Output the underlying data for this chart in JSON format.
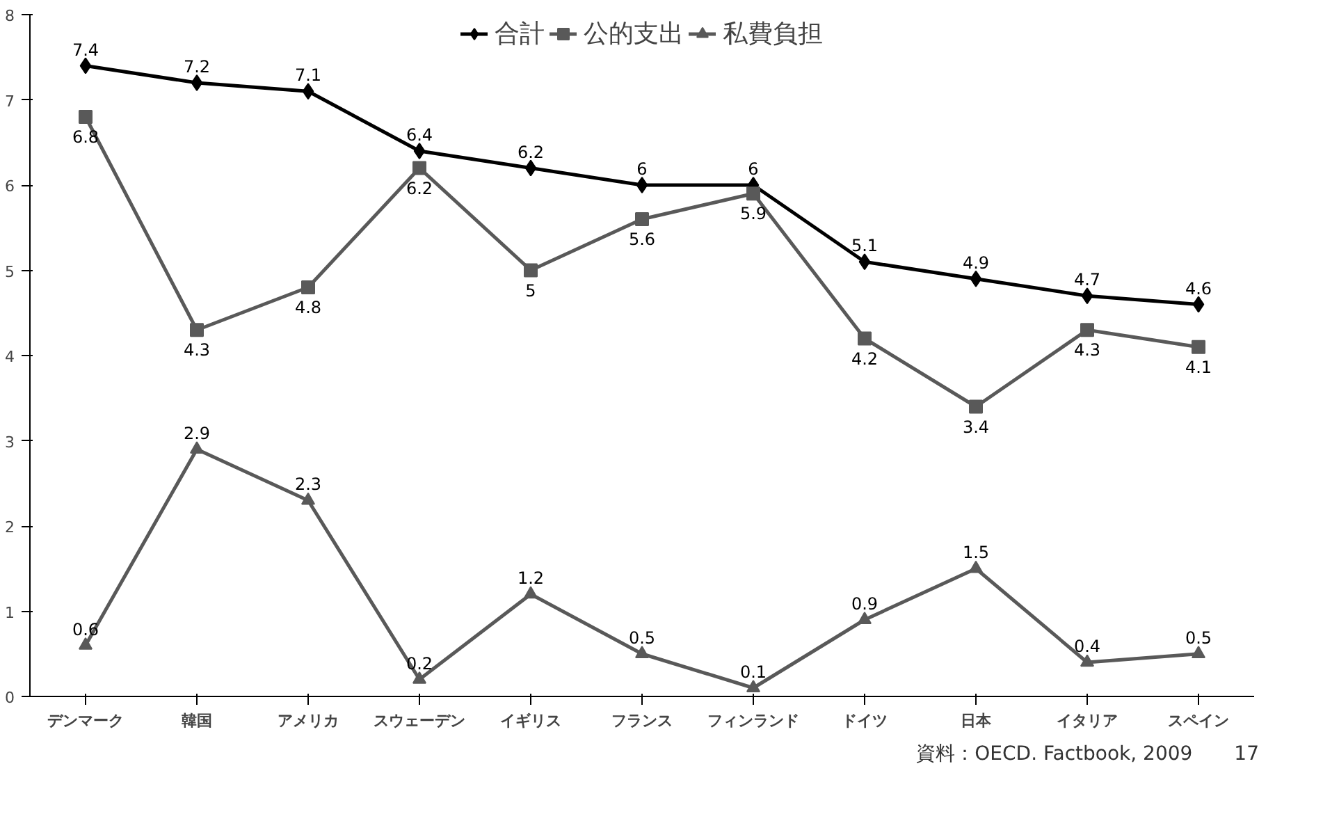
{
  "chart_data": {
    "type": "line",
    "categories": [
      "デンマーク",
      "韓国",
      "アメリカ",
      "スウェーデン",
      "イギリス",
      "フランス",
      "フィンランド",
      "ドイツ",
      "日本",
      "イタリア",
      "スペイン"
    ],
    "series": [
      {
        "name": "合計",
        "color": "#000000",
        "marker": "diamond",
        "values": [
          7.4,
          7.2,
          7.1,
          6.4,
          6.2,
          6,
          6,
          5.1,
          4.9,
          4.7,
          4.6
        ]
      },
      {
        "name": "公的支出",
        "color": "#595959",
        "marker": "square",
        "values": [
          6.8,
          4.3,
          4.8,
          6.2,
          5,
          5.6,
          5.9,
          4.2,
          3.4,
          4.3,
          4.1
        ]
      },
      {
        "name": "私費負担",
        "color": "#595959",
        "marker": "triangle",
        "values": [
          0.6,
          2.9,
          2.3,
          0.2,
          1.2,
          0.5,
          0.1,
          0.9,
          1.5,
          0.4,
          0.5
        ]
      }
    ],
    "ylim": [
      0,
      8
    ],
    "yticks": [
      0,
      1,
      2,
      3,
      4,
      5,
      6,
      7,
      8
    ],
    "grid": false,
    "legend": "top",
    "data_labels": true,
    "annotations": [
      "資料：OECD. Factbook, 2009",
      "17"
    ]
  }
}
